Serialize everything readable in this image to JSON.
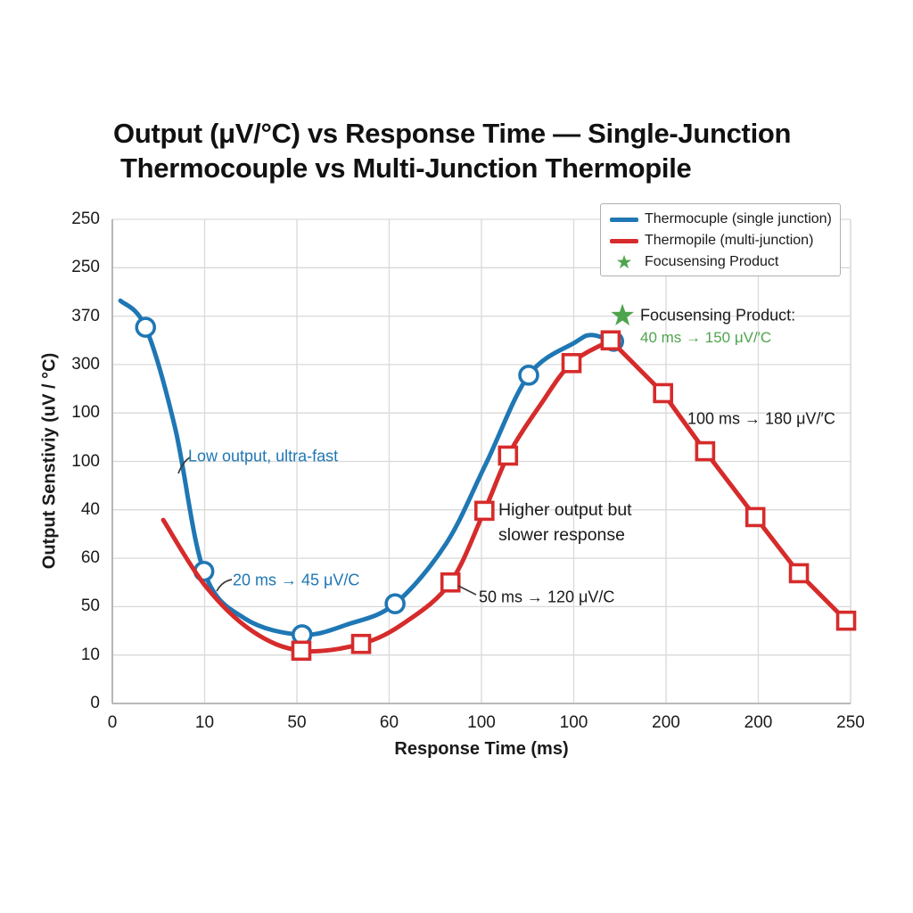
{
  "colors": {
    "thermocouple_blue": "#1f77b4",
    "thermopile_red": "#d62b2b",
    "focusensing_green": "#4ea44c",
    "grid": "#d9d9d9",
    "spine": "#b0b0b0",
    "leader": "#3a3a3a",
    "text": "#1a1a1a"
  },
  "title": {
    "line1": "Output (μV/°C) vs Response Time — Single-Junction",
    "line2": "Thermocouple vs Multi-Junction Thermopile"
  },
  "axes": {
    "x_label": "Response Time (ms)",
    "y_label": "Output Senstiviy (uV / °C)",
    "x_tick_labels": [
      "0",
      "10",
      "50",
      "60",
      "100",
      "100",
      "200",
      "200",
      "250"
    ],
    "y_tick_labels_top_to_bottom": [
      "250",
      "250",
      "370",
      "300",
      "100",
      "100",
      "40",
      "60",
      "50",
      "10",
      "0"
    ]
  },
  "legend": {
    "items": [
      {
        "label": "Thermocuple (single junction)",
        "swatch": "line",
        "color": "#1f77b4"
      },
      {
        "label": "Thermopile (multi-junction)",
        "swatch": "line",
        "color": "#d62b2b"
      },
      {
        "label": "Focusensing Product",
        "swatch": "star",
        "color": "#4ea44c"
      }
    ]
  },
  "annotations": {
    "low_output": {
      "text": "Low output, ultra-fast",
      "color": "#1f77b4"
    },
    "tc_point": {
      "text": "20 ms → 45 μV/C",
      "color": "#1f77b4"
    },
    "tp_point": {
      "text": "50 ms → 120 μV/C",
      "color": "#1a1a1a"
    },
    "higher_output": {
      "line1": "Higher output but",
      "line2": "slower response",
      "color": "#1a1a1a"
    },
    "tp_right_point": {
      "text": "100 ms → 180 μV/′C",
      "color": "#1a1a1a"
    },
    "focus_title": {
      "text": "Focusensing Product:",
      "color": "#1a1a1a"
    },
    "focus_value": {
      "text": "40 ms → 150 μV/′C",
      "color": "#4ea44c"
    }
  },
  "chart_data": {
    "type": "line",
    "title": "Output (μV/°C) vs Response Time — Single-Junction Thermocouple vs Multi-Junction Thermopile",
    "xlabel": "Response Time (ms)",
    "ylabel": "Output Senstiviy (uV / °C)",
    "x_tick_labels": [
      "0",
      "10",
      "50",
      "60",
      "100",
      "100",
      "200",
      "200",
      "250"
    ],
    "y_tick_labels_top_to_bottom": [
      "250",
      "250",
      "370",
      "300",
      "100",
      "100",
      "40",
      "60",
      "50",
      "10",
      "0"
    ],
    "grid": true,
    "legend_position": "upper right",
    "key_points": [
      {
        "series": "Thermocuple (single junction)",
        "label": "20 ms → 45 μV/C",
        "x_ms": 20,
        "y_uV_per_C": 45
      },
      {
        "series": "Thermopile (multi-junction)",
        "label": "50 ms → 120 μV/C",
        "x_ms": 50,
        "y_uV_per_C": 120
      },
      {
        "series": "Thermopile (multi-junction)",
        "label": "100 ms → 180 μV/C",
        "x_ms": 100,
        "y_uV_per_C": 180
      },
      {
        "series": "Focusensing Product",
        "label": "40 ms → 150 μV/°C",
        "x_ms": 40,
        "y_uV_per_C": 150
      }
    ],
    "series": [
      {
        "name": "Thermocuple (single junction)",
        "color": "#1f77b4",
        "marker": "circle",
        "curve_points_frac": [
          [
            0.011,
            0.168
          ],
          [
            0.045,
            0.223
          ],
          [
            0.085,
            0.431
          ],
          [
            0.124,
            0.727
          ],
          [
            0.18,
            0.825
          ],
          [
            0.257,
            0.858
          ],
          [
            0.32,
            0.836
          ],
          [
            0.383,
            0.794
          ],
          [
            0.452,
            0.67
          ],
          [
            0.506,
            0.505
          ],
          [
            0.564,
            0.322
          ],
          [
            0.627,
            0.254
          ],
          [
            0.649,
            0.239
          ],
          [
            0.679,
            0.252
          ]
        ],
        "marker_points_frac": [
          [
            0.045,
            0.223
          ],
          [
            0.124,
            0.727
          ],
          [
            0.257,
            0.858
          ],
          [
            0.383,
            0.794
          ],
          [
            0.564,
            0.322
          ],
          [
            0.679,
            0.252
          ]
        ]
      },
      {
        "name": "Thermopile (multi-junction)",
        "color": "#d62b2b",
        "marker": "square",
        "curve_points_frac": [
          [
            0.069,
            0.621
          ],
          [
            0.126,
            0.757
          ],
          [
            0.19,
            0.851
          ],
          [
            0.256,
            0.891
          ],
          [
            0.337,
            0.877
          ],
          [
            0.397,
            0.832
          ],
          [
            0.458,
            0.75
          ],
          [
            0.504,
            0.602
          ],
          [
            0.536,
            0.488
          ],
          [
            0.579,
            0.385
          ],
          [
            0.622,
            0.297
          ],
          [
            0.675,
            0.25
          ]
        ],
        "tail_points_frac": [
          [
            0.746,
            0.359
          ],
          [
            0.803,
            0.479
          ],
          [
            0.871,
            0.615
          ],
          [
            0.93,
            0.731
          ],
          [
            0.994,
            0.829
          ]
        ],
        "marker_points_frac": [
          [
            0.256,
            0.891
          ],
          [
            0.337,
            0.877
          ],
          [
            0.458,
            0.75
          ],
          [
            0.504,
            0.602
          ],
          [
            0.536,
            0.488
          ],
          [
            0.622,
            0.297
          ],
          [
            0.675,
            0.25
          ],
          [
            0.746,
            0.359
          ],
          [
            0.803,
            0.479
          ],
          [
            0.871,
            0.615
          ],
          [
            0.93,
            0.731
          ],
          [
            0.994,
            0.829
          ]
        ]
      }
    ],
    "star_marker": {
      "label": "Focusensing Product",
      "point_frac": [
        0.691,
        0.199
      ]
    }
  }
}
